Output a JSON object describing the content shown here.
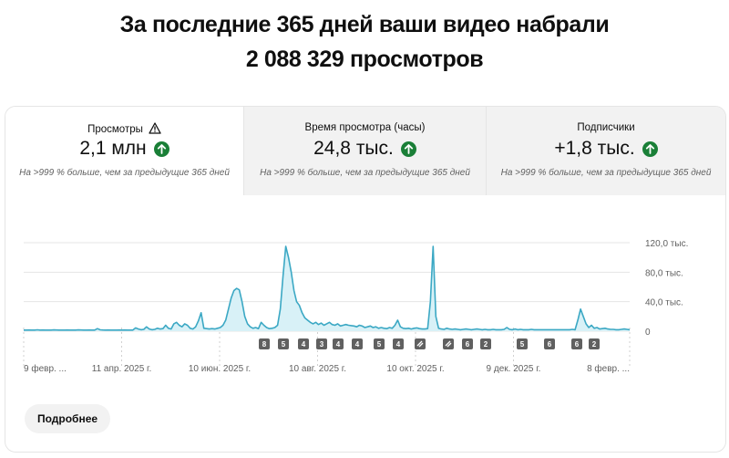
{
  "headline": {
    "line1": "За последние 365 дней ваши видео набрали",
    "line2": "2 088 329 просмотров"
  },
  "tabs": [
    {
      "title": "Просмотры",
      "value": "2,1 млн",
      "note": "На >999 % больше, чем за предыдущие 365 дней",
      "has_warning": true,
      "trend": "up"
    },
    {
      "title": "Время просмотра (часы)",
      "value": "24,8 тыс.",
      "note": "На >999 % больше, чем за предыдущие 365 дней",
      "has_warning": false,
      "trend": "up"
    },
    {
      "title": "Подписчики",
      "value": "+1,8 тыс.",
      "note": "На >999 % больше, чем за предыдущие 365 дней",
      "has_warning": false,
      "trend": "up"
    }
  ],
  "more_button": "Подробнее",
  "colors": {
    "line": "#3ba8c4",
    "fill": "#d8f1f7",
    "trend_up": "#1a7f37",
    "grid": "#e5e5e5",
    "marker_bg": "#606060"
  },
  "chart_data": {
    "type": "area",
    "y_ticks": [
      "120,0 тыс.",
      "80,0 тыс.",
      "40,0 тыс.",
      "0"
    ],
    "ylim": [
      0,
      120000
    ],
    "x_ticks": [
      "9 февр. ...",
      "11 апр. 2025 г.",
      "10 июн. 2025 г.",
      "10 авг. 2025 г.",
      "10 окт. 2025 г.",
      "9 дек. 2025 г.",
      "8 февр. ..."
    ],
    "series": [
      {
        "values": [
          1500,
          1500,
          1600,
          1500,
          1500,
          1800,
          1500,
          1600,
          1500,
          1500,
          1500,
          1700,
          1600,
          1500,
          1500,
          1500,
          1600,
          1500,
          1500,
          1500,
          1700,
          1600,
          1500,
          1500,
          1600,
          1500,
          1500,
          3500,
          1800,
          1600,
          1500,
          1600,
          1500,
          1500,
          1500,
          1600,
          1500,
          1600,
          1500,
          1500,
          1500,
          4500,
          3000,
          2000,
          2500,
          6000,
          3000,
          2000,
          2500,
          4000,
          3000,
          3500,
          8000,
          4000,
          3000,
          10000,
          12000,
          8000,
          6000,
          10000,
          8000,
          4000,
          3000,
          6000,
          14000,
          25000,
          4000,
          3500,
          3000,
          3500,
          3000,
          4000,
          5000,
          8000,
          15000,
          30000,
          45000,
          55000,
          58000,
          56000,
          40000,
          20000,
          10000,
          6000,
          4000,
          5000,
          3500,
          12000,
          8000,
          5000,
          3500,
          4000,
          5000,
          8000,
          30000,
          75000,
          115000,
          100000,
          80000,
          55000,
          40000,
          35000,
          25000,
          18000,
          15000,
          12000,
          10000,
          12000,
          9000,
          11000,
          8000,
          10000,
          12000,
          9000,
          8000,
          10000,
          7000,
          8000,
          9000,
          8000,
          7500,
          7000,
          6000,
          8000,
          7000,
          5000,
          6000,
          7000,
          5000,
          6000,
          4000,
          5000,
          4000,
          3500,
          5000,
          4000,
          8000,
          15000,
          6000,
          4000,
          3500,
          4000,
          3000,
          4000,
          4500,
          3500,
          3000,
          3000,
          3500,
          40000,
          115000,
          20000,
          4000,
          3000,
          2500,
          4000,
          3000,
          2500,
          3000,
          2500,
          2000,
          2500,
          3000,
          2500,
          2000,
          2500,
          3000,
          2500,
          2000,
          2500,
          2000,
          2000,
          2500,
          2000,
          2000,
          2000,
          2500,
          5000,
          2500,
          2000,
          3000,
          2000,
          2500,
          2000,
          2000,
          2000,
          2500,
          2000,
          2000,
          2000,
          2000,
          2000,
          2000,
          2000,
          2000,
          2000,
          2000,
          2000,
          2000,
          2000,
          2000,
          2500,
          2000,
          15000,
          30000,
          20000,
          10000,
          5000,
          8000,
          4000,
          5000,
          3000,
          3500,
          4000,
          3000,
          2500,
          2500,
          2000,
          2000,
          2500,
          3000,
          2500,
          2000
        ]
      }
    ],
    "markers": [
      "8",
      "5",
      "4",
      "3",
      "4",
      "4",
      "5",
      "4",
      "0",
      "4",
      "6",
      "2",
      "5",
      "6",
      "6",
      "2"
    ],
    "marker_icons": [
      "",
      "",
      "",
      "",
      "",
      "",
      "",
      "",
      "clip-icon",
      "clip-icon",
      "",
      "",
      "",
      "",
      "",
      ""
    ],
    "grid": true
  }
}
